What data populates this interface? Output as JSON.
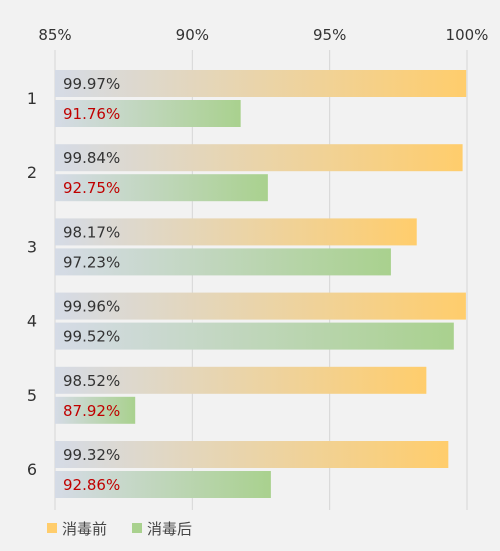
{
  "chart_data": {
    "type": "bar",
    "orientation": "horizontal",
    "categories": [
      "1",
      "2",
      "3",
      "4",
      "5",
      "6"
    ],
    "series": [
      {
        "name": "消毒前",
        "values": [
          99.97,
          99.84,
          98.17,
          99.96,
          98.52,
          99.32
        ],
        "labels": [
          "99.97%",
          "99.84%",
          "98.17%",
          "99.96%",
          "98.52%",
          "99.32%"
        ],
        "color": "#ffcd6c"
      },
      {
        "name": "消毒后",
        "values": [
          91.76,
          92.75,
          97.23,
          99.52,
          87.92,
          92.86
        ],
        "labels": [
          "91.76%",
          "92.75%",
          "97.23%",
          "99.52%",
          "87.92%",
          "92.86%"
        ],
        "color": "#a9d18e"
      }
    ],
    "label_colors": [
      "#333333",
      "#c00000",
      "#333333",
      "#c00000",
      "#333333",
      "#333333",
      "#333333",
      "#333333",
      "#333333",
      "#c00000",
      "#333333",
      "#c00000"
    ],
    "xaxis": {
      "ticks": [
        85,
        90,
        95,
        100
      ],
      "tick_labels": [
        "85%",
        "90%",
        "95%",
        "100%"
      ],
      "position": "top"
    },
    "xlim": [
      85,
      100
    ],
    "grid": true,
    "legend": {
      "position": "bottom-left",
      "entries": [
        "消毒前",
        "消毒后"
      ]
    },
    "title": "",
    "xlabel": "",
    "ylabel": ""
  }
}
